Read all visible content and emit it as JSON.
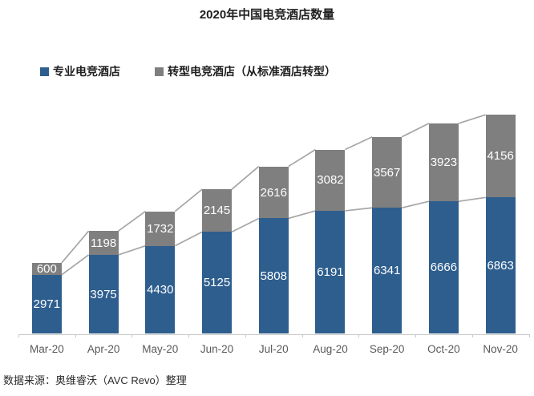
{
  "title": "2020年中国电竞酒店数量",
  "source_note": "数据来源：奥维睿沃（AVC Revo）整理",
  "chart_data": {
    "type": "bar",
    "stacked": true,
    "title": "2020年中国电竞酒店数量",
    "categories": [
      "Mar-20",
      "Apr-20",
      "May-20",
      "Jun-20",
      "Jul-20",
      "Aug-20",
      "Sep-20",
      "Oct-20",
      "Nov-20"
    ],
    "series": [
      {
        "name": "专业电竞酒店",
        "color": "#2e5e8e",
        "values": [
          2971,
          3975,
          4430,
          5125,
          5808,
          6191,
          6341,
          6666,
          6863
        ]
      },
      {
        "name": "转型电竞酒店（从标准酒店转型）",
        "color": "#7f7f7f",
        "values": [
          600,
          1198,
          1732,
          2145,
          2616,
          3082,
          3567,
          3923,
          4156
        ]
      }
    ],
    "totals": [
      3571,
      5173,
      6162,
      7270,
      8424,
      9273,
      9908,
      10589,
      11019
    ],
    "data_labels": true,
    "data_label_color": "#ffffff",
    "series_lines": true,
    "series_line_color": "#a6a6a6",
    "axis_color": "#c8c8c8",
    "axis_label_color": "#595959",
    "legend_position": "top-left",
    "grid": false,
    "ylim": [
      0,
      11100
    ]
  }
}
